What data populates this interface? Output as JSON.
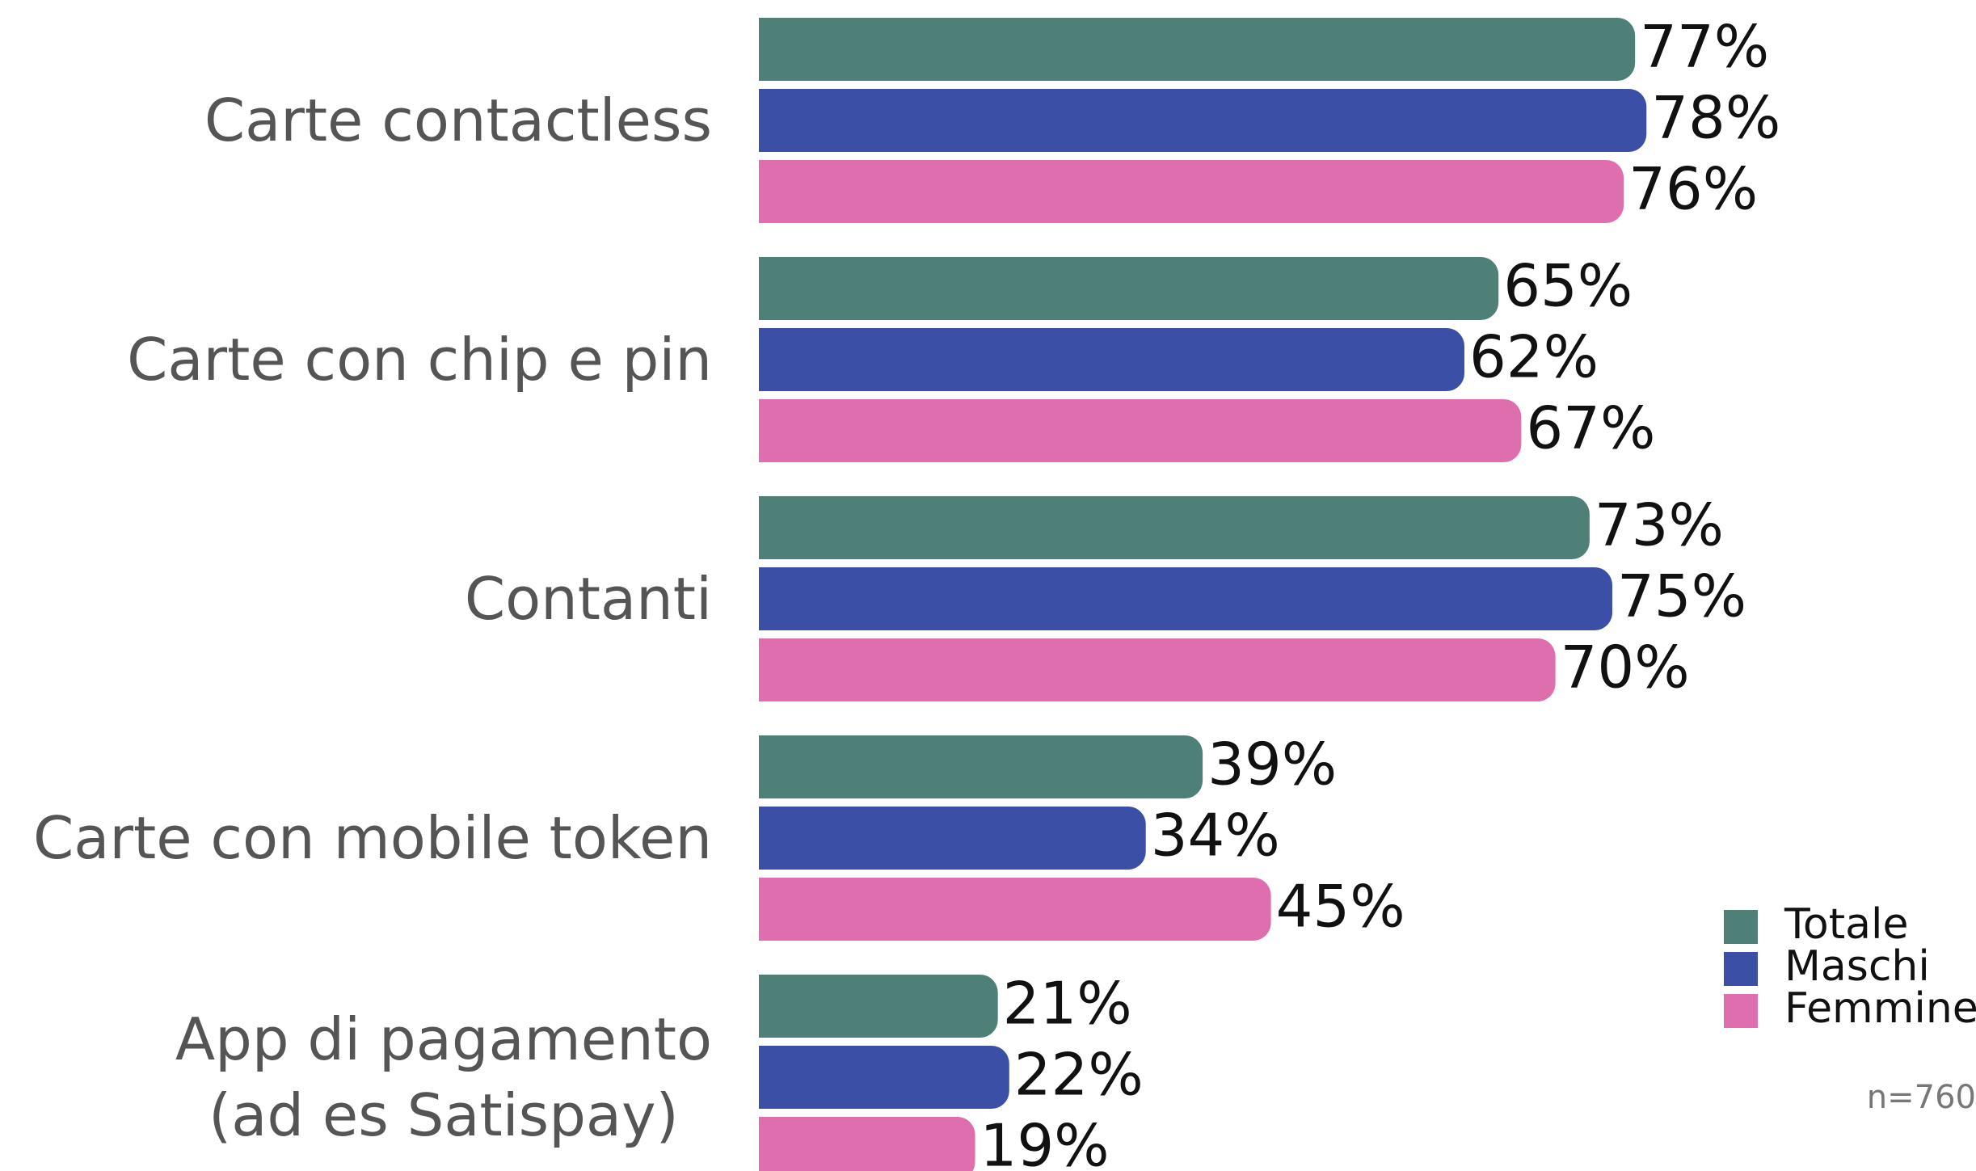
{
  "chart_data": {
    "type": "bar",
    "orientation": "horizontal",
    "categories": [
      "Carte contactless",
      "Carte con chip e pin",
      "Contanti",
      "Carte con mobile token",
      "App di pagamento\n(ad es Satispay)"
    ],
    "series": [
      {
        "name": "Totale",
        "color": "#4e8077",
        "values": [
          77,
          65,
          73,
          39,
          21
        ],
        "value_labels": [
          "77%",
          "65%",
          "73%",
          "39%",
          "21%"
        ]
      },
      {
        "name": "Maschi",
        "color": "#3c4fa6",
        "values": [
          78,
          62,
          75,
          34,
          22
        ],
        "value_labels": [
          "78%",
          "62%",
          "75%",
          "34%",
          "22%"
        ]
      },
      {
        "name": "Femmine",
        "color": "#de6eae",
        "values": [
          76,
          67,
          70,
          45,
          19
        ],
        "value_labels": [
          "76%",
          "67%",
          "70%",
          "45%",
          "19%"
        ]
      }
    ],
    "xlim": [
      0,
      100
    ],
    "legend": "lower right",
    "annotation": "n=760"
  }
}
